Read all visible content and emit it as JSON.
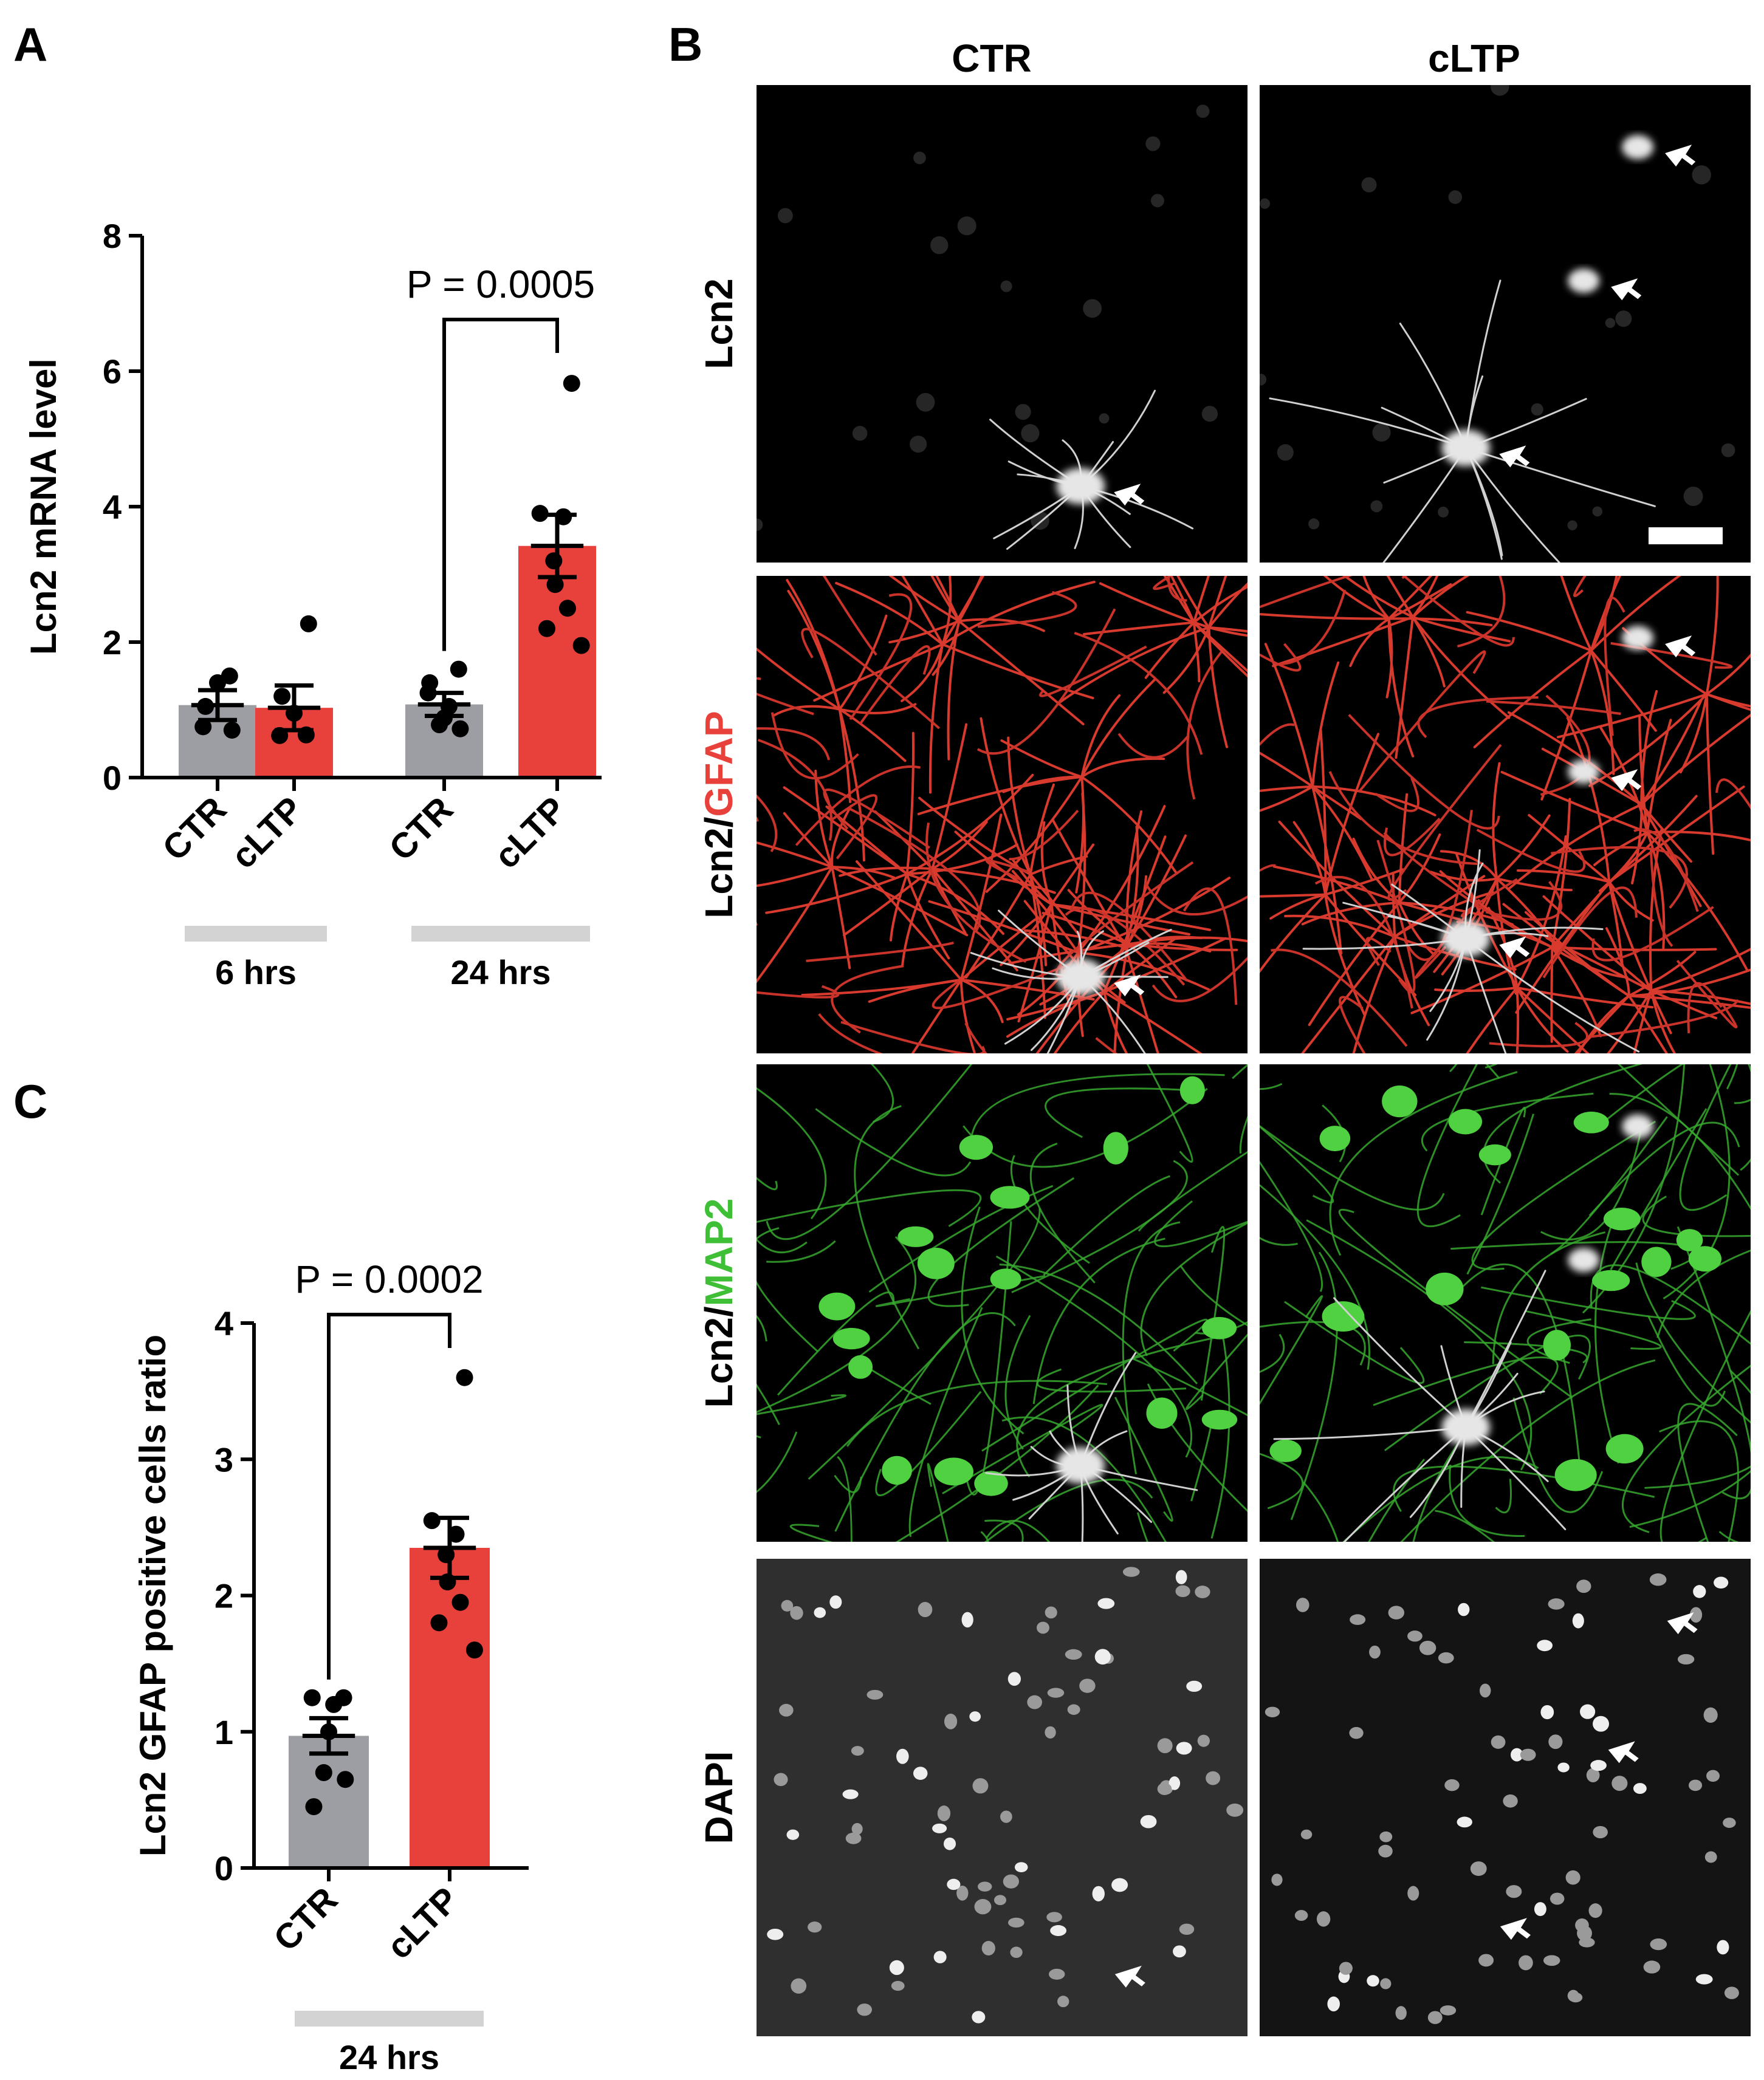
{
  "panels": {
    "a": "A",
    "b": "B",
    "c": "C"
  },
  "colors": {
    "ctr": "#9d9ea3",
    "cltp": "#e8413c",
    "axis": "#000000",
    "group_bar": "#d3d3d3"
  },
  "chart_data": [
    {
      "panel": "A",
      "type": "bar",
      "ylabel": "Lcn2 mRNA level",
      "ylim": [
        0,
        8
      ],
      "yticks": [
        "0",
        "2",
        "4",
        "6",
        "8"
      ],
      "categories": [
        "CTR",
        "cLTP",
        "CTR",
        "cLTP"
      ],
      "groups": [
        {
          "label": "6 hrs",
          "categories": [
            0,
            1
          ]
        },
        {
          "label": "24  hrs",
          "categories": [
            2,
            3
          ]
        }
      ],
      "series": [
        {
          "values": [
            1.07,
            1.03,
            1.08,
            3.42
          ],
          "sem": [
            0.22,
            0.33,
            0.17,
            0.46
          ],
          "colors": [
            "ctr",
            "cltp",
            "ctr",
            "cltp"
          ],
          "points": [
            [
              0.7,
              1.05,
              1.4,
              1.5,
              0.75
            ],
            [
              2.27,
              1.2,
              0.95,
              0.63,
              0.62
            ],
            [
              1.6,
              1.25,
              1.05,
              0.88,
              0.78,
              0.72,
              1.4
            ],
            [
              5.82,
              3.9,
              3.85,
              3.2,
              2.85,
              2.5,
              2.2,
              1.95
            ]
          ]
        }
      ],
      "annotation": {
        "text": "P = 0.0005",
        "from": 2,
        "to": 3
      }
    },
    {
      "panel": "C",
      "type": "bar",
      "ylabel": "Lcn2 GFAP positive cells ratio",
      "ylim": [
        0,
        4
      ],
      "yticks": [
        "0",
        "1",
        "2",
        "3",
        "4"
      ],
      "categories": [
        "CTR",
        "cLTP"
      ],
      "groups": [
        {
          "label": "24  hrs",
          "categories": [
            0,
            1
          ]
        }
      ],
      "series": [
        {
          "values": [
            0.97,
            2.35
          ],
          "sem": [
            0.13,
            0.22
          ],
          "colors": [
            "ctr",
            "cltp"
          ],
          "points": [
            [
              1.25,
              1.25,
              1.2,
              1.0,
              0.7,
              0.65,
              0.45
            ],
            [
              3.6,
              2.55,
              2.45,
              2.3,
              2.1,
              1.95,
              1.8,
              1.6
            ]
          ]
        }
      ],
      "annotation": {
        "text": "P = 0.0002",
        "from": 0,
        "to": 1
      }
    }
  ],
  "micrographs": {
    "columns": [
      "CTR",
      "cLTP"
    ],
    "rows": [
      {
        "label_parts": [
          {
            "text": "Lcn2",
            "color": "#000000"
          }
        ],
        "channel": "lcn2"
      },
      {
        "label_parts": [
          {
            "text": "Lcn2/",
            "color": "#000000"
          },
          {
            "text": "GFAP",
            "color": "#e8413c"
          }
        ],
        "channel": "gfap"
      },
      {
        "label_parts": [
          {
            "text": "Lcn2/",
            "color": "#000000"
          },
          {
            "text": "MAP2",
            "color": "#3fbf36"
          }
        ],
        "channel": "map2"
      },
      {
        "label_parts": [
          {
            "text": "DAPI",
            "color": "#000000"
          }
        ],
        "channel": "dapi"
      }
    ]
  }
}
